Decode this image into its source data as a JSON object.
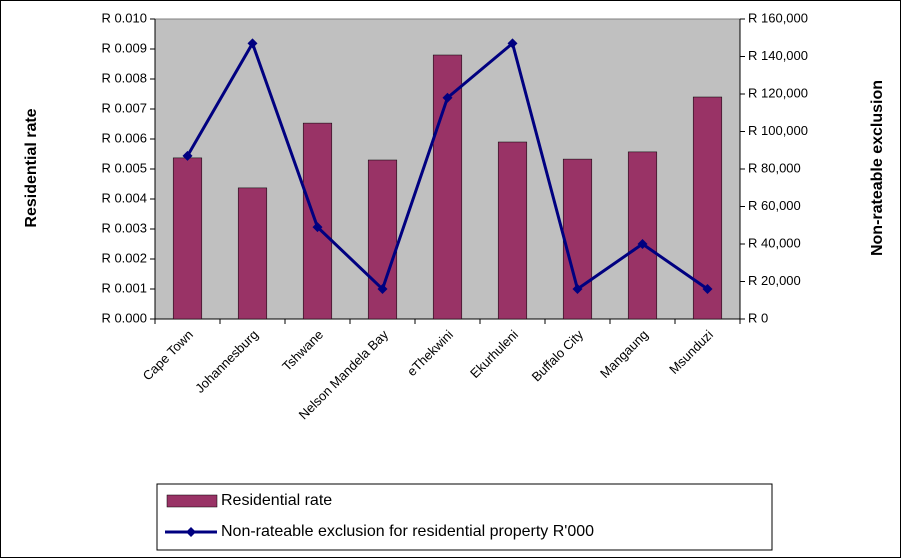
{
  "chart_data": {
    "type": "bar-line",
    "y_label": "Residential rate",
    "y2_label": "Non-rateable exclusion",
    "categories": [
      "Cape Town",
      "Johannesburg",
      "Tshwane",
      "Nelson Mandela Bay",
      "eThekwini",
      "Ekurhuleni",
      "Buffalo City",
      "Mangaung",
      "Msunduzi"
    ],
    "series": [
      {
        "name": "Residential rate",
        "type": "bar",
        "color": "#993366",
        "values": [
          0.00537,
          0.00437,
          0.00653,
          0.0053,
          0.0088,
          0.0059,
          0.00533,
          0.00557,
          0.0074
        ]
      },
      {
        "name": "Non-rateable exclusion for residential property R'000",
        "type": "line",
        "axis": "y2",
        "color": "#000080",
        "values": [
          87000,
          147000,
          49000,
          16000,
          118000,
          147000,
          16000,
          40000,
          16000
        ]
      }
    ],
    "ylim": [
      0,
      0.01
    ],
    "yticks": [
      {
        "value": 0,
        "label": "R 0.000"
      },
      {
        "value": 0.001,
        "label": "R 0.001"
      },
      {
        "value": 0.002,
        "label": "R 0.002"
      },
      {
        "value": 0.003,
        "label": "R 0.003"
      },
      {
        "value": 0.004,
        "label": "R 0.004"
      },
      {
        "value": 0.005,
        "label": "R 0.005"
      },
      {
        "value": 0.006,
        "label": "R 0.006"
      },
      {
        "value": 0.007,
        "label": "R 0.007"
      },
      {
        "value": 0.008,
        "label": "R 0.008"
      },
      {
        "value": 0.009,
        "label": "R 0.009"
      },
      {
        "value": 0.01,
        "label": "R 0.010"
      }
    ],
    "y2lim": [
      0,
      160000
    ],
    "y2ticks": [
      {
        "value": 0,
        "label": "R 0"
      },
      {
        "value": 20000,
        "label": "R 20,000"
      },
      {
        "value": 40000,
        "label": "R 40,000"
      },
      {
        "value": 60000,
        "label": "R 60,000"
      },
      {
        "value": 80000,
        "label": "R 80,000"
      },
      {
        "value": 100000,
        "label": "R 100,000"
      },
      {
        "value": 120000,
        "label": "R 120,000"
      },
      {
        "value": 140000,
        "label": "R 140,000"
      },
      {
        "value": 160000,
        "label": "R 160,000"
      }
    ],
    "plot_background": "#c0c0c0",
    "grid": false,
    "legend": "bottom"
  }
}
